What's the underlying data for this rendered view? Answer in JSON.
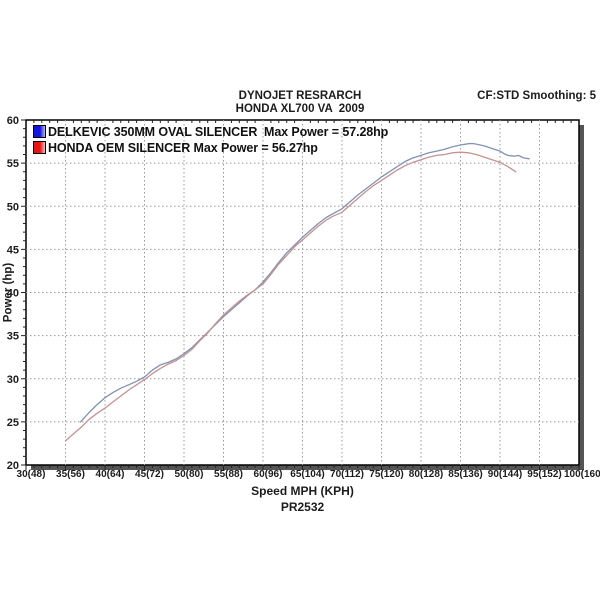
{
  "header": {
    "title_line1": "DYNOJET RESRARCH",
    "title_line2": "HONDA XL700 VA  2009",
    "top_right": "CF:STD Smoothing: 5"
  },
  "footer": {
    "code": "PR2532"
  },
  "chart_data": {
    "type": "line",
    "title": "DYNOJET RESRARCH HONDA XL700 VA 2009",
    "xlabel": "Speed MPH (KPH)",
    "ylabel": "Power (hp)",
    "xlim": [
      30,
      100
    ],
    "ylim": [
      20,
      60
    ],
    "x_major_step": 5,
    "y_major_step": 5,
    "grid": true,
    "grid_color": "#9a9a9a",
    "axis_color": "#000000",
    "legend_position": "top-left-inside",
    "x_ticks": [
      [
        30,
        "30(48)"
      ],
      [
        35,
        "35(56)"
      ],
      [
        40,
        "40(64)"
      ],
      [
        45,
        "45(72)"
      ],
      [
        50,
        "50(80)"
      ],
      [
        55,
        "55(88)"
      ],
      [
        60,
        "60(96)"
      ],
      [
        65,
        "65(104)"
      ],
      [
        70,
        "70(112)"
      ],
      [
        75,
        "75(120)"
      ],
      [
        80,
        "80(128)"
      ],
      [
        85,
        "85(136)"
      ],
      [
        90,
        "90(144)"
      ],
      [
        95,
        "95(152)"
      ],
      [
        100,
        "100(160)"
      ]
    ],
    "y_ticks": [
      "20",
      "25",
      "30",
      "35",
      "40",
      "45",
      "50",
      "55",
      "60"
    ],
    "series": [
      {
        "name": "DELKEVIC 350MM OVAL SILENCER  Max Power = 57.28hp",
        "max_power_hp": 57.28,
        "line_color": "#8292b4",
        "swatch_color": "#1414dc",
        "swatch_color_light": "#b4b4ff",
        "points": [
          [
            36.9,
            25.0
          ],
          [
            38,
            26.1
          ],
          [
            39,
            27.0
          ],
          [
            40,
            27.8
          ],
          [
            41,
            28.4
          ],
          [
            42,
            28.9
          ],
          [
            43,
            29.3
          ],
          [
            44,
            29.7
          ],
          [
            45,
            30.2
          ],
          [
            46,
            31.0
          ],
          [
            47,
            31.6
          ],
          [
            48,
            31.9
          ],
          [
            49,
            32.3
          ],
          [
            50,
            32.9
          ],
          [
            51,
            33.6
          ],
          [
            52,
            34.5
          ],
          [
            53,
            35.4
          ],
          [
            54,
            36.3
          ],
          [
            55,
            37.2
          ],
          [
            56,
            38.0
          ],
          [
            57,
            38.8
          ],
          [
            58,
            39.6
          ],
          [
            59,
            40.3
          ],
          [
            60,
            41.2
          ],
          [
            61,
            42.3
          ],
          [
            62,
            43.5
          ],
          [
            63,
            44.6
          ],
          [
            64,
            45.5
          ],
          [
            65,
            46.4
          ],
          [
            66,
            47.2
          ],
          [
            67,
            48.0
          ],
          [
            68,
            48.7
          ],
          [
            69,
            49.2
          ],
          [
            70,
            49.7
          ],
          [
            71,
            50.5
          ],
          [
            72,
            51.3
          ],
          [
            73,
            52.0
          ],
          [
            74,
            52.7
          ],
          [
            75,
            53.4
          ],
          [
            76,
            54.0
          ],
          [
            77,
            54.6
          ],
          [
            78,
            55.2
          ],
          [
            79,
            55.6
          ],
          [
            80,
            55.9
          ],
          [
            81,
            56.2
          ],
          [
            82,
            56.4
          ],
          [
            83,
            56.6
          ],
          [
            84,
            56.9
          ],
          [
            85,
            57.1
          ],
          [
            86,
            57.25
          ],
          [
            86.5,
            57.28
          ],
          [
            87,
            57.2
          ],
          [
            88,
            57.0
          ],
          [
            89,
            56.7
          ],
          [
            90,
            56.4
          ],
          [
            90.5,
            56.1
          ],
          [
            91,
            55.9
          ],
          [
            91.8,
            55.8
          ],
          [
            92.3,
            55.9
          ],
          [
            93,
            55.6
          ],
          [
            93.7,
            55.5
          ]
        ]
      },
      {
        "name": "HONDA OEM SILENCER Max Power = 56.27hp",
        "max_power_hp": 56.27,
        "line_color": "#c69292",
        "swatch_color": "#e81414",
        "swatch_color_light": "#ffb4b4",
        "points": [
          [
            35,
            22.8
          ],
          [
            36,
            23.6
          ],
          [
            37,
            24.4
          ],
          [
            38,
            25.3
          ],
          [
            39,
            26.0
          ],
          [
            40,
            26.6
          ],
          [
            41,
            27.3
          ],
          [
            42,
            28.0
          ],
          [
            43,
            28.7
          ],
          [
            44,
            29.3
          ],
          [
            45,
            29.9
          ],
          [
            46,
            30.6
          ],
          [
            47,
            31.2
          ],
          [
            48,
            31.7
          ],
          [
            49,
            32.1
          ],
          [
            50,
            32.7
          ],
          [
            51,
            33.4
          ],
          [
            52,
            34.4
          ],
          [
            53,
            35.3
          ],
          [
            54,
            36.4
          ],
          [
            55,
            37.4
          ],
          [
            56,
            38.2
          ],
          [
            57,
            39.0
          ],
          [
            58,
            39.7
          ],
          [
            59,
            40.3
          ],
          [
            60,
            41.0
          ],
          [
            61,
            42.1
          ],
          [
            62,
            43.3
          ],
          [
            63,
            44.3
          ],
          [
            64,
            45.3
          ],
          [
            65,
            46.1
          ],
          [
            66,
            46.9
          ],
          [
            67,
            47.7
          ],
          [
            68,
            48.4
          ],
          [
            69,
            48.9
          ],
          [
            70,
            49.3
          ],
          [
            71,
            50.1
          ],
          [
            72,
            50.9
          ],
          [
            73,
            51.7
          ],
          [
            74,
            52.4
          ],
          [
            75,
            53.0
          ],
          [
            76,
            53.6
          ],
          [
            77,
            54.2
          ],
          [
            78,
            54.7
          ],
          [
            79,
            55.1
          ],
          [
            80,
            55.4
          ],
          [
            81,
            55.7
          ],
          [
            82,
            55.9
          ],
          [
            83,
            56.0
          ],
          [
            84,
            56.2
          ],
          [
            85,
            56.27
          ],
          [
            86,
            56.2
          ],
          [
            87,
            56.0
          ],
          [
            88,
            55.7
          ],
          [
            89,
            55.4
          ],
          [
            90,
            55.1
          ],
          [
            91,
            54.6
          ],
          [
            92,
            54.0
          ]
        ]
      }
    ]
  }
}
